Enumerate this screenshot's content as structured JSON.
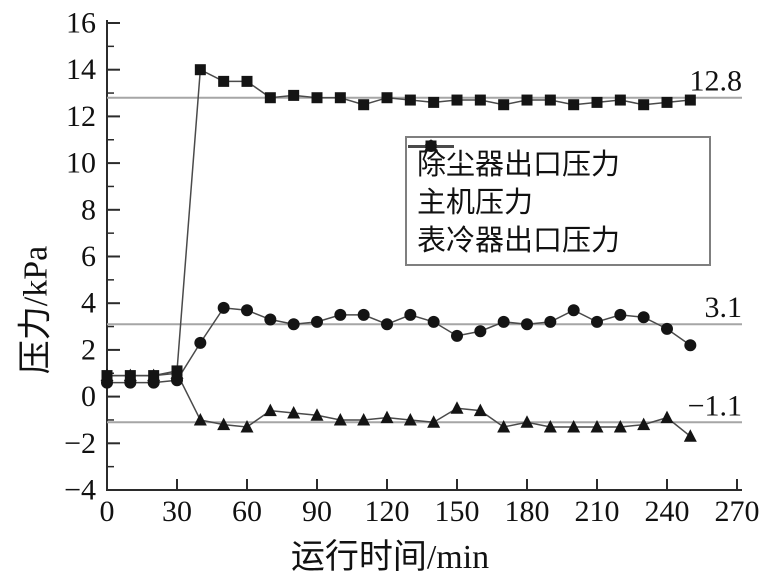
{
  "figure": {
    "background": "#ffffff",
    "axis_color": "#2b2b2b",
    "line_color": "#4a4a4a",
    "marker_color": "#141414",
    "ref_line_color": "#a6a6a6",
    "text_color": "#111111"
  },
  "chart_data": {
    "type": "line",
    "title": "",
    "xlabel": "运行时间/min",
    "ylabel": "压力/kPa",
    "xlim": [
      0,
      270
    ],
    "ylim": [
      -4,
      16
    ],
    "grid": false,
    "legend_position": "upper-center-right inside plot, boxed",
    "x_ticks": [
      {
        "v": 0,
        "label": "0"
      },
      {
        "v": 30,
        "label": "30"
      },
      {
        "v": 60,
        "label": "60"
      },
      {
        "v": 90,
        "label": "90"
      },
      {
        "v": 120,
        "label": "120"
      },
      {
        "v": 150,
        "label": "150"
      },
      {
        "v": 180,
        "label": "180"
      },
      {
        "v": 210,
        "label": "210"
      },
      {
        "v": 240,
        "label": "240"
      },
      {
        "v": 270,
        "label": "270"
      }
    ],
    "y_ticks": [
      {
        "v": 16,
        "label": "16"
      },
      {
        "v": 14,
        "label": "14"
      },
      {
        "v": 12,
        "label": "12"
      },
      {
        "v": 10,
        "label": "10"
      },
      {
        "v": 8,
        "label": "8"
      },
      {
        "v": 6,
        "label": "6"
      },
      {
        "v": 4,
        "label": "4"
      },
      {
        "v": 2,
        "label": "2"
      },
      {
        "v": 0,
        "label": "0"
      },
      {
        "v": -2,
        "label": "−2"
      },
      {
        "v": -4,
        "label": "−4"
      }
    ],
    "y_minor_ticks": [
      15,
      13,
      11,
      9,
      7,
      5,
      3,
      1,
      -1,
      -3
    ],
    "x": [
      0,
      10,
      20,
      30,
      40,
      50,
      60,
      70,
      80,
      90,
      100,
      110,
      120,
      130,
      140,
      150,
      160,
      170,
      180,
      190,
      200,
      210,
      220,
      230,
      240,
      250
    ],
    "series": [
      {
        "name": "除尘器出口压力",
        "marker": "triangle",
        "values": [
          0.9,
          0.9,
          0.9,
          1.0,
          -1.0,
          -1.2,
          -1.3,
          -0.6,
          -0.7,
          -0.8,
          -1.0,
          -1.0,
          -0.9,
          -1.0,
          -1.1,
          -0.5,
          -0.6,
          -1.3,
          -1.1,
          -1.3,
          -1.3,
          -1.3,
          -1.3,
          -1.2,
          -0.9,
          -1.7
        ]
      },
      {
        "name": "主机压力",
        "marker": "circle",
        "values": [
          0.6,
          0.6,
          0.6,
          0.7,
          2.3,
          3.8,
          3.7,
          3.3,
          3.1,
          3.2,
          3.5,
          3.5,
          3.1,
          3.5,
          3.2,
          2.6,
          2.8,
          3.2,
          3.1,
          3.2,
          3.7,
          3.2,
          3.5,
          3.4,
          2.9,
          2.2
        ]
      },
      {
        "name": "表冷器出口压力",
        "marker": "square",
        "values": [
          0.9,
          0.9,
          0.9,
          1.1,
          14.0,
          13.5,
          13.5,
          12.8,
          12.9,
          12.8,
          12.8,
          12.5,
          12.8,
          12.7,
          12.6,
          12.7,
          12.7,
          12.5,
          12.7,
          12.7,
          12.5,
          12.6,
          12.7,
          12.5,
          12.6,
          12.7
        ]
      }
    ],
    "reference_lines": [
      {
        "value": 12.8,
        "label": "12.8"
      },
      {
        "value": 3.1,
        "label": "3.1"
      },
      {
        "value": -1.1,
        "label": "−1.1"
      }
    ]
  },
  "legend": {
    "items": [
      {
        "label": "除尘器出口压力",
        "marker": "triangle"
      },
      {
        "label": "主机压力",
        "marker": "circle"
      },
      {
        "label": "表冷器出口压力",
        "marker": "square"
      }
    ]
  }
}
